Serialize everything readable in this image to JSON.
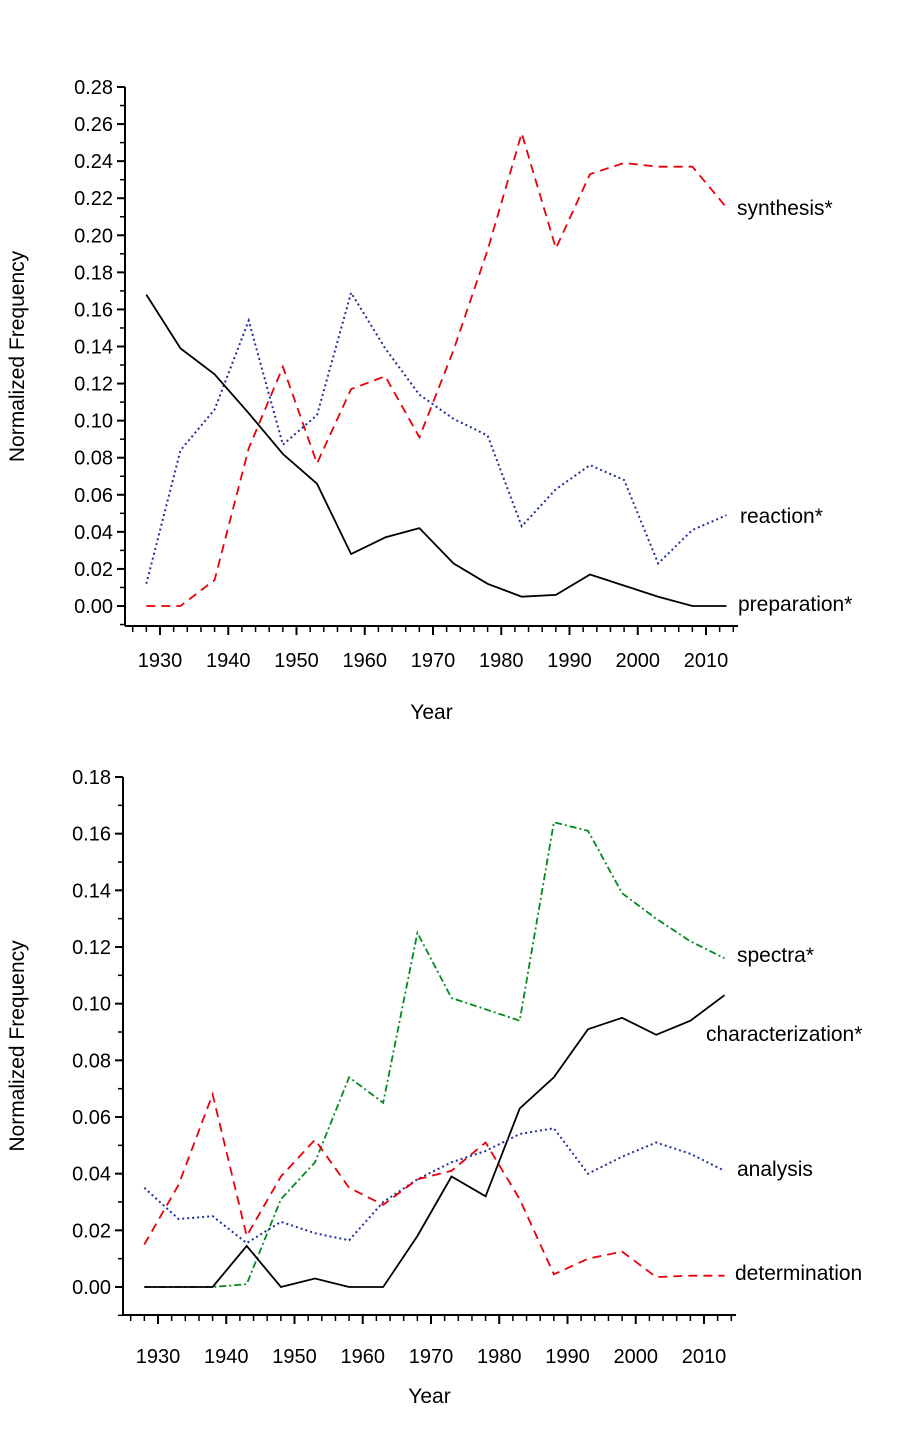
{
  "chart_data": [
    {
      "type": "line",
      "xlabel": "Year",
      "ylabel": "Normalized Frequency",
      "xlim": [
        1925,
        2015
      ],
      "ylim": [
        0,
        0.28
      ],
      "xticks": [
        "1930",
        "1940",
        "1950",
        "1960",
        "1970",
        "1980",
        "1990",
        "2000",
        "2010"
      ],
      "yticks": [
        "0.00",
        "0.02",
        "0.04",
        "0.06",
        "0.08",
        "0.10",
        "0.12",
        "0.14",
        "0.16",
        "0.18",
        "0.20",
        "0.22",
        "0.24",
        "0.26",
        "0.28"
      ],
      "grid": false,
      "x": [
        1928,
        1933,
        1938,
        1943,
        1948,
        1953,
        1958,
        1963,
        1968,
        1973,
        1978,
        1983,
        1988,
        1993,
        1998,
        2003,
        2008,
        2013
      ],
      "series": [
        {
          "name": "synthesis*",
          "color": "#e8000b",
          "dash": "dashed",
          "values": [
            0,
            0,
            0.014,
            0.085,
            0.129,
            0.077,
            0.117,
            0.124,
            0.091,
            0.138,
            0.192,
            0.255,
            0.193,
            0.233,
            0.239,
            0.237,
            0.237,
            0.215
          ]
        },
        {
          "name": "reaction*",
          "color": "#1f2fa0",
          "dash": "dotted",
          "values": [
            0.012,
            0.084,
            0.106,
            0.154,
            0.087,
            0.103,
            0.169,
            0.139,
            0.114,
            0.101,
            0.092,
            0.043,
            0.063,
            0.076,
            0.068,
            0.023,
            0.041,
            0.049
          ]
        },
        {
          "name": "preparation*",
          "color": "#000000",
          "dash": "solid",
          "values": [
            0.168,
            0.139,
            0.125,
            0.104,
            0.082,
            0.066,
            0.028,
            0.037,
            0.042,
            0.023,
            0.012,
            0.005,
            0.006,
            0.017,
            0.011,
            0.005,
            0,
            0
          ]
        }
      ]
    },
    {
      "type": "line",
      "xlabel": "Year",
      "ylabel": "Normalized Frequency",
      "xlim": [
        1925,
        2015
      ],
      "ylim": [
        0,
        0.18
      ],
      "xticks": [
        "1930",
        "1940",
        "1950",
        "1960",
        "1970",
        "1980",
        "1990",
        "2000",
        "2010"
      ],
      "yticks": [
        "0.00",
        "0.02",
        "0.04",
        "0.06",
        "0.08",
        "0.10",
        "0.12",
        "0.14",
        "0.16",
        "0.18"
      ],
      "grid": false,
      "x": [
        1928,
        1933,
        1938,
        1943,
        1948,
        1953,
        1958,
        1963,
        1968,
        1973,
        1978,
        1983,
        1988,
        1993,
        1998,
        2003,
        2008,
        2013
      ],
      "series": [
        {
          "name": "spectra*",
          "color": "#008a1e",
          "dash": "dashdot",
          "values": [
            0,
            0,
            0,
            0.001,
            0.031,
            0.044,
            0.074,
            0.065,
            0.125,
            0.102,
            0.098,
            0.094,
            0.164,
            0.161,
            0.139,
            0.13,
            0.122,
            0.116
          ]
        },
        {
          "name": "characterization*",
          "color": "#000000",
          "dash": "solid",
          "values": [
            0,
            0,
            0,
            0.0145,
            0,
            0.003,
            0,
            0,
            0.018,
            0.039,
            0.032,
            0.063,
            0.074,
            0.091,
            0.095,
            0.089,
            0.094,
            0.103
          ]
        },
        {
          "name": "analysis",
          "color": "#1f2fa0",
          "dash": "dotted",
          "values": [
            0.035,
            0.024,
            0.025,
            0.0155,
            0.023,
            0.019,
            0.0165,
            0.03,
            0.038,
            0.044,
            0.048,
            0.054,
            0.056,
            0.04,
            0.046,
            0.051,
            0.047,
            0.041
          ]
        },
        {
          "name": "determination",
          "color": "#e8000b",
          "dash": "dashed",
          "values": [
            0.015,
            0.036,
            0.068,
            0.018,
            0.039,
            0.052,
            0.035,
            0.029,
            0.038,
            0.041,
            0.051,
            0.031,
            0.0045,
            0.01,
            0.0125,
            0.0035,
            0.004,
            0.004
          ]
        }
      ]
    }
  ]
}
